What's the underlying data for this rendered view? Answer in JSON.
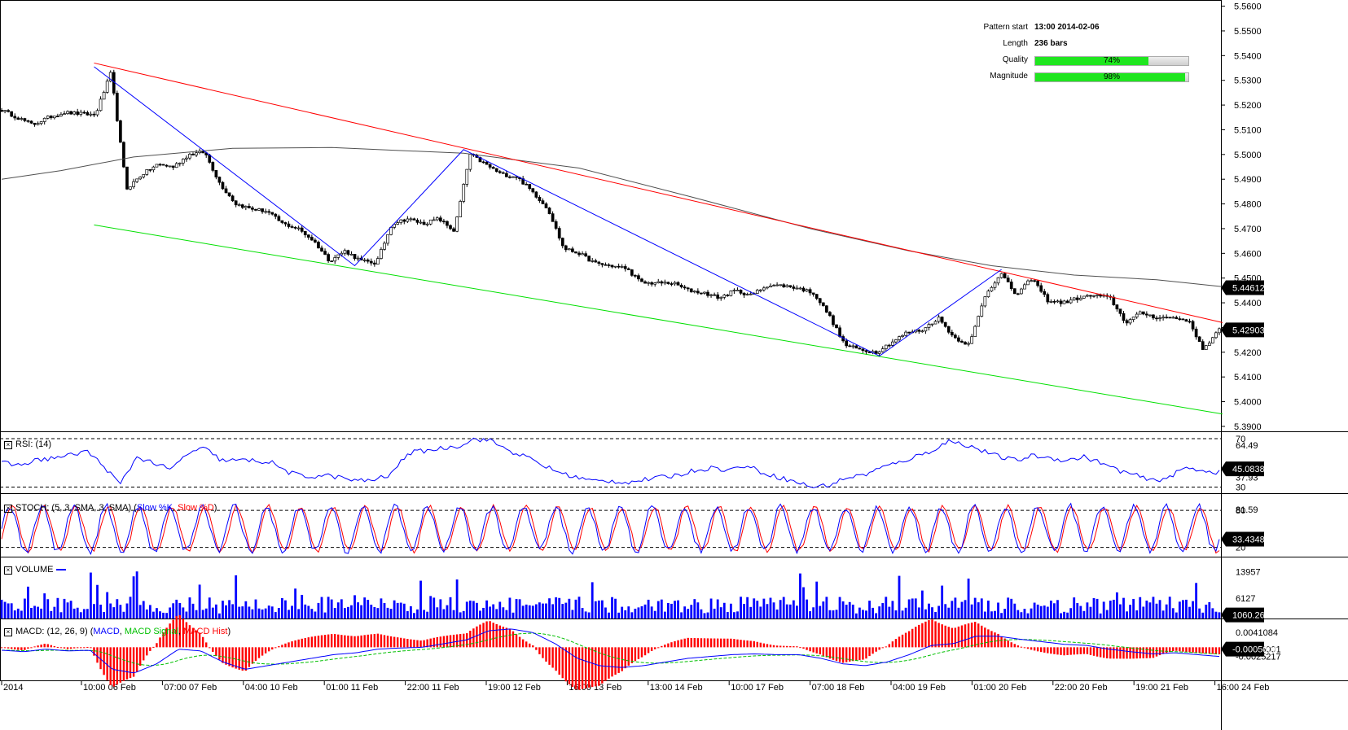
{
  "pattern_info": {
    "start_label": "Pattern start",
    "start_value": "13:00 2014-02-06",
    "length_label": "Length",
    "length_value": "236 bars",
    "quality_label": "Quality",
    "quality_pct": 74,
    "quality_text": "74%",
    "magnitude_label": "Magnitude",
    "magnitude_pct": 98,
    "magnitude_text": "98%"
  },
  "panels": {
    "rsi_title": "RSI: (14)",
    "stoch_title": "STOCH: (5, 3, SMA, 3, SMA)",
    "stoch_k": "Slow %K",
    "stoch_d": "Slow %D",
    "volume_title": "VOLUME",
    "macd_title": "MACD: (12, 26, 9)",
    "macd_l": "MACD",
    "macd_s": "MACD Signal",
    "macd_h": "MACD Hist"
  },
  "colors": {
    "channel_upper": "#ff0000",
    "channel_lower": "#00e000",
    "zigzag": "#0000ff",
    "ma": "#505050",
    "volume": "#0000ff",
    "macd_hist": "#ff0000",
    "signal": "#00c000"
  },
  "chart_data": [
    {
      "type": "candlestick",
      "title": "",
      "y_ticks": [
        "5.5600",
        "5.5500",
        "5.5400",
        "5.5300",
        "5.5200",
        "5.5100",
        "5.5000",
        "5.4900",
        "5.4800",
        "5.4700",
        "5.4600",
        "5.4500",
        "5.4400",
        "5.4300",
        "5.4200",
        "5.4100",
        "5.4000",
        "5.3900"
      ],
      "ylim": [
        5.388,
        5.5625
      ],
      "x_ticks": [
        "2014",
        "10:00 06 Feb",
        "07:00 07 Feb",
        "04:00 10 Feb",
        "01:00 11 Feb",
        "22:00 11 Feb",
        "19:00 12 Feb",
        "16:00 13 Feb",
        "13:00 14 Feb",
        "10:00 17 Feb",
        "07:00 18 Feb",
        "04:00 19 Feb",
        "01:00 20 Feb",
        "22:00 20 Feb",
        "19:00 21 Feb",
        "16:00 24 Feb"
      ],
      "price_path_knots": [
        5.518,
        5.515,
        5.512,
        5.515,
        5.517,
        5.5165,
        5.516,
        5.533,
        5.486,
        5.492,
        5.496,
        5.495,
        5.5,
        5.501,
        5.488,
        5.48,
        5.478,
        5.477,
        5.472,
        5.47,
        5.465,
        5.457,
        5.461,
        5.457,
        5.456,
        5.472,
        5.474,
        5.472,
        5.474,
        5.469,
        5.5,
        5.496,
        5.492,
        5.491,
        5.485,
        5.478,
        5.462,
        5.46,
        5.456,
        5.455,
        5.454,
        5.448,
        5.448,
        5.448,
        5.445,
        5.444,
        5.442,
        5.445,
        5.443,
        5.447,
        5.447,
        5.446,
        5.444,
        5.435,
        5.423,
        5.421,
        5.42,
        5.424,
        5.428,
        5.429,
        5.434,
        5.426,
        5.423,
        5.443,
        5.452,
        5.443,
        5.45,
        5.441,
        5.44,
        5.442,
        5.443,
        5.442,
        5.432,
        5.436,
        5.434,
        5.434,
        5.433,
        5.421,
        5.429
      ],
      "moving_average": [
        [
          0,
          5.49
        ],
        [
          18,
          5.4935
        ],
        [
          40,
          5.499
        ],
        [
          70,
          5.5025
        ],
        [
          100,
          5.5028
        ],
        [
          140,
          5.5005
        ],
        [
          175,
          5.4945
        ],
        [
          210,
          5.4825
        ],
        [
          245,
          5.47
        ],
        [
          275,
          5.461
        ],
        [
          300,
          5.455
        ],
        [
          325,
          5.4512
        ],
        [
          350,
          5.4493
        ],
        [
          370,
          5.4465
        ]
      ],
      "channel_upper": [
        [
          28,
          5.537
        ],
        [
          370,
          5.432
        ]
      ],
      "channel_lower": [
        [
          28,
          5.4715
        ],
        [
          370,
          5.395
        ]
      ],
      "zigzag": [
        [
          28,
          5.5355
        ],
        [
          107,
          5.455
        ],
        [
          140,
          5.502
        ],
        [
          266,
          5.4185
        ],
        [
          303,
          5.4535
        ]
      ],
      "last_ma": "5.44612",
      "last_price": "5.42903"
    },
    {
      "type": "line",
      "title": "RSI: (14)",
      "yticks": [
        "70",
        "64.49",
        "37.93",
        "30"
      ],
      "ylim": [
        25,
        72
      ],
      "levels": [
        70,
        30
      ],
      "knots": [
        50,
        48,
        52,
        54,
        56,
        60,
        48,
        32,
        55,
        50,
        44,
        58,
        62,
        52,
        52,
        52,
        50,
        42,
        38,
        40,
        38,
        35,
        36,
        40,
        58,
        60,
        62,
        64,
        70,
        68,
        60,
        55,
        48,
        42,
        38,
        35,
        35,
        34,
        36,
        38,
        40,
        44,
        46,
        44,
        48,
        42,
        38,
        34,
        30,
        32,
        38,
        40,
        46,
        50,
        55,
        60,
        68,
        65,
        60,
        55,
        52,
        56,
        54,
        52,
        55,
        50,
        44,
        40,
        35,
        38,
        46,
        44,
        42
      ],
      "last_value": "45.0838"
    },
    {
      "type": "line",
      "title": "STOCH: (5, 3, SMA, 3, SMA)",
      "yticks": [
        "80",
        "81.59",
        "20"
      ],
      "ylim": [
        5,
        100
      ],
      "levels": [
        80,
        20
      ],
      "cycles": 38,
      "last_value": "33.43484"
    },
    {
      "type": "bar",
      "title": "VOLUME",
      "yticks": [
        "13957",
        "6127"
      ],
      "ylim": [
        0,
        17000
      ],
      "last_value": "1060.26"
    },
    {
      "type": "line",
      "title": "MACD: (12, 26, 9)",
      "yticks": [
        "0.0041084",
        "-0.0005001",
        "-0.0025217"
      ],
      "ylim": [
        -0.009,
        0.0065
      ],
      "macd_knots": [
        -0.0008,
        -0.0012,
        -0.0005,
        -0.001,
        -0.0008,
        -0.006,
        -0.007,
        -0.0045,
        -0.0005,
        -0.001,
        -0.004,
        -0.006,
        -0.005,
        -0.004,
        -0.003,
        -0.002,
        -0.0015,
        -0.0005,
        -0.0002,
        0.0,
        0.001,
        0.002,
        0.0045,
        0.005,
        0.004,
        0.001,
        -0.003,
        -0.005,
        -0.0055,
        -0.005,
        -0.004,
        -0.003,
        -0.0025,
        -0.002,
        -0.0018,
        -0.002,
        -0.002,
        -0.003,
        -0.0045,
        -0.005,
        -0.004,
        -0.002,
        0.0005,
        0.001,
        0.003,
        0.003,
        0.0022,
        0.0015,
        0.0008,
        0.0005,
        -0.0005,
        -0.0012,
        -0.0018,
        -0.0015,
        -0.002,
        -0.0025
      ],
      "last_value": "-0.0005001"
    }
  ]
}
